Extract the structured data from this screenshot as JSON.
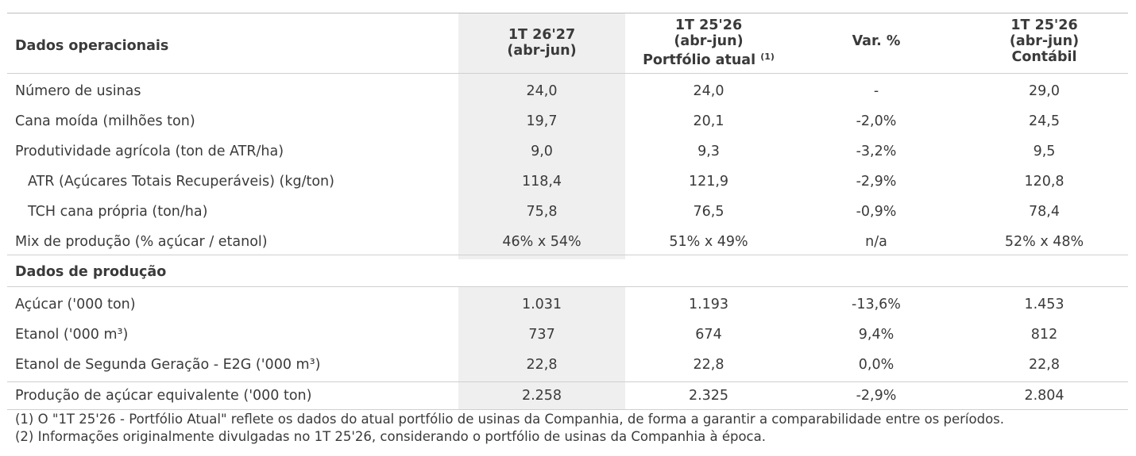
{
  "header": {
    "title": "Dados operacionais",
    "col1": {
      "line1": "1T 26'27",
      "line2": "(abr-jun)"
    },
    "col2": {
      "line1": "1T 25'26",
      "line2": "(abr-jun)",
      "line3": "Portfólio atual",
      "sup": "(1)"
    },
    "col3": {
      "line1": "Var. %"
    },
    "col4": {
      "line1": "1T 25'26",
      "line2": "(abr-jun)",
      "line3": "Contábil"
    }
  },
  "operational_rows": [
    {
      "label": "Número de usinas",
      "v1": "24,0",
      "v2": "24,0",
      "v3": "-",
      "v4": "29,0"
    },
    {
      "label": "Cana moída (milhões ton)",
      "v1": "19,7",
      "v2": "20,1",
      "v3": "-2,0%",
      "v4": "24,5"
    },
    {
      "label": "Produtividade agrícola (ton de ATR/ha)",
      "v1": "9,0",
      "v2": "9,3",
      "v3": "-3,2%",
      "v4": "9,5"
    },
    {
      "label": "ATR (Açúcares Totais Recuperáveis) (kg/ton)",
      "v1": "118,4",
      "v2": "121,9",
      "v3": "-2,9%",
      "v4": "120,8"
    },
    {
      "label": "TCH cana própria (ton/ha)",
      "v1": "75,8",
      "v2": "76,5",
      "v3": "-0,9%",
      "v4": "78,4"
    },
    {
      "label": "Mix de produção (% açúcar / etanol)",
      "v1": "46% x 54%",
      "v2": "51% x 49%",
      "v3": "n/a",
      "v4": "52% x 48%"
    }
  ],
  "production_section": {
    "title": "Dados de produção"
  },
  "production_rows": [
    {
      "label": "Açúcar ('000 ton)",
      "v1": "1.031",
      "v2": "1.193",
      "v3": "-13,6%",
      "v4": "1.453"
    },
    {
      "label": "Etanol ('000 m³)",
      "v1": "737",
      "v2": "674",
      "v3": "9,4%",
      "v4": "812"
    },
    {
      "label": "Etanol de Segunda Geração - E2G ('000 m³)",
      "v1": "22,8",
      "v2": "22,8",
      "v3": "0,0%",
      "v4": "22,8"
    }
  ],
  "total_row": {
    "label": "Produção de açúcar equivalente ('000 ton)",
    "v1": "2.258",
    "v2": "2.325",
    "v3": "-2,9%",
    "v4": "2.804"
  },
  "footnotes": [
    "(1) O \"1T 25'26 - Portfólio Atual\" reflete os dados do atual portfólio de usinas da Companhia, de forma a garantir a comparabilidade entre os períodos.",
    "(2) Informações originalmente divulgadas no 1T 25'26, considerando o portfólio de usinas da Companhia à época."
  ]
}
